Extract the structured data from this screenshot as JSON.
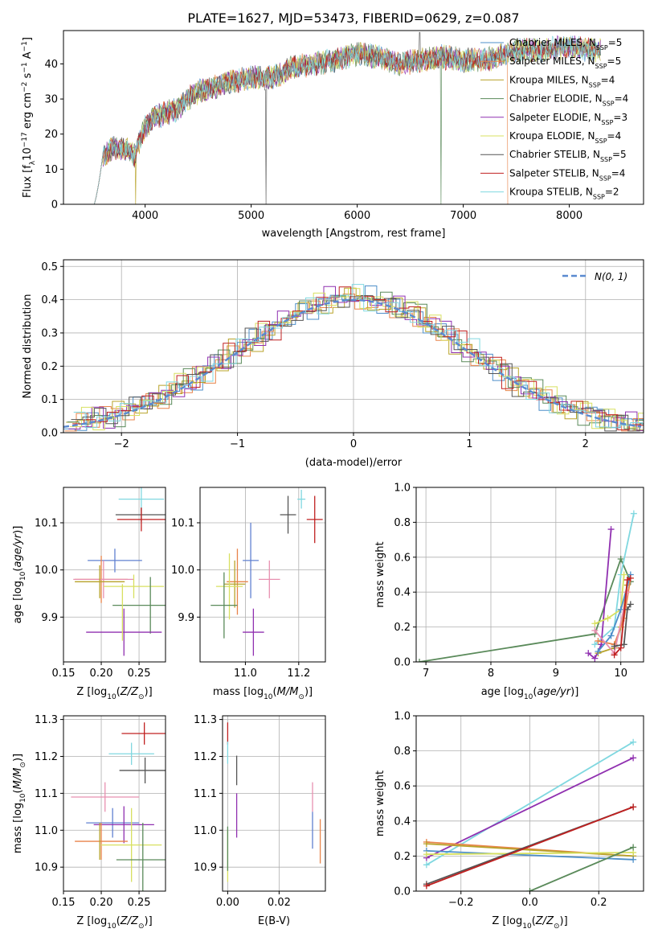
{
  "figure": {
    "title": "PLATE=1627, MJD=53473, FIBERID=0629, z=0.087",
    "colors": {
      "Chabrier MILES": "#4e8fc9",
      "Salpeter MILES": "#e8844a",
      "Kroupa MILES": "#b8a32a",
      "Chabrier ELODIE": "#5a8a5a",
      "Salpeter ELODIE": "#9030b0",
      "Kroupa ELODIE": "#d8e060",
      "Chabrier STELIB": "#555555",
      "Salpeter STELIB": "#c02020",
      "Kroupa STELIB": "#80d8e0",
      "extra_pink": "#e890b0",
      "extra_blue": "#6080d0",
      "gauss": "#5a8ad0"
    }
  },
  "chart_data": [
    {
      "id": "spectrum",
      "type": "line",
      "title": "PLATE=1627, MJD=53473, FIBERID=0629, z=0.087",
      "xlabel": "wavelength [Angstrom, rest frame]",
      "ylabel": "Flux [fλ10⁻¹⁷ erg cm⁻² s⁻¹ A⁻¹]",
      "xlim": [
        3230,
        8700
      ],
      "ylim": [
        0,
        49.5
      ],
      "xticks": [
        4000,
        5000,
        6000,
        7000,
        8000
      ],
      "yticks": [
        0,
        10,
        20,
        30,
        40
      ],
      "legend_position": "upper-right",
      "legend": [
        {
          "name": "Chabrier MILES, N",
          "sub": "SSP",
          "suffix": "=5",
          "color": "Chabrier MILES"
        },
        {
          "name": "Salpeter MILES, N",
          "sub": "SSP",
          "suffix": "=5",
          "color": "Salpeter MILES"
        },
        {
          "name": "Kroupa MILES, N",
          "sub": "SSP",
          "suffix": "=4",
          "color": "Kroupa MILES"
        },
        {
          "name": "Chabrier ELODIE, N",
          "sub": "SSP",
          "suffix": "=4",
          "color": "Chabrier ELODIE"
        },
        {
          "name": "Salpeter ELODIE, N",
          "sub": "SSP",
          "suffix": "=3",
          "color": "Salpeter ELODIE"
        },
        {
          "name": "Kroupa ELODIE, N",
          "sub": "SSP",
          "suffix": "=4",
          "color": "Kroupa ELODIE"
        },
        {
          "name": "Chabrier STELIB, N",
          "sub": "SSP",
          "suffix": "=5",
          "color": "Chabrier STELIB"
        },
        {
          "name": "Salpeter STELIB, N",
          "sub": "SSP",
          "suffix": "=4",
          "color": "Salpeter STELIB"
        },
        {
          "name": "Kroupa STELIB, N",
          "sub": "SSP",
          "suffix": "=2",
          "color": "Kroupa STELIB"
        }
      ],
      "continuum": {
        "x": [
          3520,
          3600,
          3700,
          3800,
          3900,
          3950,
          4000,
          4100,
          4200,
          4300,
          4400,
          4500,
          4600,
          4800,
          5000,
          5200,
          5400,
          5600,
          5800,
          6000,
          6200,
          6400,
          6600,
          6800,
          7000,
          7200,
          7400,
          7600,
          7800,
          8000,
          8200,
          8300
        ],
        "y": [
          8,
          14,
          16,
          16,
          14,
          18,
          22,
          25,
          26,
          27,
          30,
          32,
          33,
          35,
          36,
          36,
          39,
          40,
          41,
          43,
          42,
          40,
          41,
          42,
          41,
          41,
          43,
          44,
          44,
          45,
          44,
          44
        ]
      },
      "drops": [
        {
          "series": "Chabrier MILES",
          "x": 3520
        },
        {
          "series": "Kroupa MILES",
          "x": 3910
        },
        {
          "series": "Chabrier STELIB",
          "x": 5140
        },
        {
          "series": "Chabrier ELODIE",
          "x": 6790
        },
        {
          "series": "Salpeter MILES",
          "x": 7420
        }
      ]
    },
    {
      "id": "residual-histogram",
      "type": "step-histogram",
      "xlabel": "(data-model)/error",
      "ylabel": "Normed distribution",
      "xlim": [
        -2.5,
        2.5
      ],
      "ylim": [
        0,
        0.52
      ],
      "xticks": [
        -2,
        -1,
        0,
        1,
        2
      ],
      "yticks": [
        0.0,
        0.1,
        0.2,
        0.3,
        0.4,
        0.5
      ],
      "legend_position": "upper-right",
      "gauss_label": "N(0, 1)",
      "bin_width": 0.1,
      "series": [
        {
          "color": "Chabrier MILES",
          "offsets": [
            0.01,
            -0.02,
            0.02,
            0.01,
            -0.01,
            0.02,
            0.03,
            -0.02,
            0.01,
            0.0
          ]
        },
        {
          "color": "Salpeter MILES",
          "offsets": [
            -0.01,
            0.02,
            -0.02,
            0.03,
            0.01,
            -0.01,
            0.0,
            0.02,
            -0.02,
            0.01
          ]
        },
        {
          "color": "Kroupa MILES",
          "offsets": [
            0.02,
            0.0,
            -0.01,
            -0.02,
            0.03,
            0.01,
            -0.02,
            0.0,
            0.02,
            -0.01
          ]
        },
        {
          "color": "Chabrier ELODIE",
          "offsets": [
            0.03,
            -0.01,
            0.01,
            0.02,
            -0.02,
            0.0,
            0.01,
            0.03,
            -0.01,
            0.02
          ]
        },
        {
          "color": "Salpeter ELODIE",
          "offsets": [
            -0.02,
            0.01,
            0.03,
            -0.01,
            0.0,
            0.02,
            -0.01,
            0.01,
            0.03,
            -0.02
          ]
        },
        {
          "color": "Kroupa ELODIE",
          "offsets": [
            0.0,
            0.03,
            -0.02,
            0.01,
            0.02,
            -0.02,
            0.02,
            -0.01,
            0.0,
            0.03
          ]
        },
        {
          "color": "Chabrier STELIB",
          "offsets": [
            0.01,
            0.0,
            0.02,
            -0.02,
            0.01,
            0.03,
            -0.01,
            0.02,
            -0.02,
            0.0
          ]
        },
        {
          "color": "Salpeter STELIB",
          "offsets": [
            -0.01,
            0.02,
            0.0,
            0.03,
            -0.01,
            0.01,
            0.02,
            -0.02,
            0.01,
            0.02
          ]
        },
        {
          "color": "Kroupa STELIB",
          "offsets": [
            0.02,
            -0.02,
            0.01,
            0.0,
            0.03,
            -0.01,
            0.0,
            0.01,
            0.02,
            -0.01
          ]
        }
      ]
    },
    {
      "id": "age-vs-Z",
      "type": "errorbar",
      "xlabel": "Z [log10(Z/Z⊙)]",
      "ylabel": "age  [log10(age/yr)]",
      "xlim": [
        0.15,
        0.285
      ],
      "ylim": [
        9.805,
        10.175
      ],
      "xticks": [
        0.15,
        0.2,
        0.25
      ],
      "yticks": [
        9.9,
        10.0,
        10.1
      ],
      "points": [
        {
          "color": "Kroupa STELIB",
          "x": 0.253,
          "y": 10.15,
          "xe": 0.03,
          "ye": 0.025
        },
        {
          "color": "Chabrier STELIB",
          "x": 0.253,
          "y": 10.117,
          "xe": 0.034,
          "ye": 0.015
        },
        {
          "color": "Salpeter STELIB",
          "x": 0.253,
          "y": 10.107,
          "xe": 0.032,
          "ye": 0.025
        },
        {
          "color": "extra_blue",
          "x": 0.218,
          "y": 10.02,
          "xe": 0.036,
          "ye": 0.025
        },
        {
          "color": "Salpeter MILES",
          "x": 0.2,
          "y": 9.98,
          "xe": 0.035,
          "ye": 0.05
        },
        {
          "color": "extra_pink",
          "x": 0.203,
          "y": 9.98,
          "xe": 0.04,
          "ye": 0.04
        },
        {
          "color": "Kroupa MILES",
          "x": 0.198,
          "y": 9.975,
          "xe": 0.033,
          "ye": 0.035
        },
        {
          "color": "Kroupa ELODIE",
          "x": 0.243,
          "y": 9.965,
          "xe": 0.04,
          "ye": 0.025
        },
        {
          "color": "Chabrier ELODIE",
          "x": 0.265,
          "y": 9.925,
          "xe": 0.05,
          "ye": 0.06
        },
        {
          "color": "Salpeter ELODIE",
          "x": 0.23,
          "y": 9.868,
          "xe": 0.05,
          "ye": 0.05
        },
        {
          "color": "Kroupa ELODIE",
          "x": 0.228,
          "y": 9.91,
          "xe": 0.0,
          "ye": 0.06
        }
      ]
    },
    {
      "id": "age-vs-mass",
      "type": "errorbar",
      "xlabel": "mass [log10(M/M⊙)]",
      "ylabel": "",
      "xlim": [
        10.83,
        11.3
      ],
      "ylim": [
        9.805,
        10.175
      ],
      "xticks": [
        11.0,
        11.2
      ],
      "yticks": [
        9.9,
        10.0,
        10.1
      ],
      "points": [
        {
          "color": "Kroupa STELIB",
          "x": 11.21,
          "y": 10.15,
          "xe": 0.015,
          "ye": 0.02
        },
        {
          "color": "Chabrier STELIB",
          "x": 11.16,
          "y": 10.117,
          "xe": 0.03,
          "ye": 0.04
        },
        {
          "color": "Salpeter STELIB",
          "x": 11.26,
          "y": 10.107,
          "xe": 0.03,
          "ye": 0.05
        },
        {
          "color": "extra_blue",
          "x": 11.02,
          "y": 10.02,
          "xe": 0.03,
          "ye": 0.08
        },
        {
          "color": "extra_pink",
          "x": 11.09,
          "y": 9.98,
          "xe": 0.04,
          "ye": 0.04
        },
        {
          "color": "Salpeter MILES",
          "x": 10.97,
          "y": 9.975,
          "xe": 0.04,
          "ye": 0.07
        },
        {
          "color": "Kroupa MILES",
          "x": 10.96,
          "y": 9.97,
          "xe": 0.04,
          "ye": 0.05
        },
        {
          "color": "Kroupa ELODIE",
          "x": 10.94,
          "y": 9.965,
          "xe": 0.05,
          "ye": 0.07
        },
        {
          "color": "Chabrier ELODIE",
          "x": 10.92,
          "y": 9.925,
          "xe": 0.05,
          "ye": 0.07
        },
        {
          "color": "Salpeter ELODIE",
          "x": 11.03,
          "y": 9.868,
          "xe": 0.04,
          "ye": 0.05
        }
      ]
    },
    {
      "id": "massweight-vs-age",
      "type": "line",
      "xlabel": "age  [log10(age/yr)]",
      "ylabel": "mass weight",
      "xlim": [
        6.85,
        10.35
      ],
      "ylim": [
        0,
        1.0
      ],
      "xticks": [
        7,
        8,
        9,
        10
      ],
      "yticks": [
        0.0,
        0.2,
        0.4,
        0.6,
        0.8,
        1.0
      ],
      "series": [
        {
          "color": "Chabrier ELODIE",
          "x": [
            6.9,
            9.6,
            10.0,
            10.15
          ],
          "y": [
            0.0,
            0.16,
            0.59,
            0.46
          ]
        },
        {
          "color": "Kroupa STELIB",
          "x": [
            9.6,
            9.9,
            10.0,
            10.2
          ],
          "y": [
            0.1,
            0.2,
            0.5,
            0.85
          ]
        },
        {
          "color": "Salpeter ELODIE",
          "x": [
            9.5,
            9.6,
            9.7,
            9.85
          ],
          "y": [
            0.05,
            0.02,
            0.1,
            0.76
          ]
        },
        {
          "color": "Kroupa ELODIE",
          "x": [
            9.6,
            9.8,
            10.0,
            10.05
          ],
          "y": [
            0.22,
            0.25,
            0.3,
            0.5
          ]
        },
        {
          "color": "Kroupa MILES",
          "x": [
            9.65,
            9.9,
            10.0,
            10.1
          ],
          "y": [
            0.05,
            0.08,
            0.2,
            0.44
          ]
        },
        {
          "color": "Salpeter MILES",
          "x": [
            9.65,
            9.9,
            10.05,
            10.15
          ],
          "y": [
            0.12,
            0.1,
            0.25,
            0.48
          ]
        },
        {
          "color": "Chabrier MILES",
          "x": [
            9.65,
            9.85,
            10.0,
            10.15
          ],
          "y": [
            0.06,
            0.15,
            0.3,
            0.5
          ]
        },
        {
          "color": "extra_pink",
          "x": [
            9.6,
            9.9,
            10.1
          ],
          "y": [
            0.18,
            0.05,
            0.4
          ]
        },
        {
          "color": "Chabrier STELIB",
          "x": [
            9.9,
            10.05,
            10.1,
            10.15
          ],
          "y": [
            0.09,
            0.1,
            0.3,
            0.33
          ]
        },
        {
          "color": "Salpeter STELIB",
          "x": [
            9.9,
            10.0,
            10.1,
            10.15
          ],
          "y": [
            0.04,
            0.08,
            0.47,
            0.48
          ]
        }
      ]
    },
    {
      "id": "mass-vs-Z",
      "type": "errorbar",
      "xlabel": "Z [log10(Z/Z⊙)]",
      "ylabel": "mass [log10(M/M⊙)]",
      "xlim": [
        0.15,
        0.285
      ],
      "ylim": [
        10.835,
        11.31
      ],
      "xticks": [
        0.15,
        0.2,
        0.25
      ],
      "yticks": [
        10.9,
        11.0,
        11.1,
        11.2,
        11.3
      ],
      "points": [
        {
          "color": "Salpeter STELIB",
          "x": 0.257,
          "y": 11.262,
          "xe": 0.03,
          "ye": 0.03
        },
        {
          "color": "Kroupa STELIB",
          "x": 0.24,
          "y": 11.207,
          "xe": 0.03,
          "ye": 0.03
        },
        {
          "color": "Chabrier STELIB",
          "x": 0.258,
          "y": 11.162,
          "xe": 0.034,
          "ye": 0.035
        },
        {
          "color": "extra_pink",
          "x": 0.205,
          "y": 11.09,
          "xe": 0.045,
          "ye": 0.04
        },
        {
          "color": "extra_blue",
          "x": 0.215,
          "y": 11.02,
          "xe": 0.035,
          "ye": 0.04
        },
        {
          "color": "Salpeter ELODIE",
          "x": 0.23,
          "y": 11.015,
          "xe": 0.04,
          "ye": 0.05
        },
        {
          "color": "Salpeter MILES",
          "x": 0.2,
          "y": 10.97,
          "xe": 0.035,
          "ye": 0.05
        },
        {
          "color": "Kroupa ELODIE",
          "x": 0.24,
          "y": 10.96,
          "xe": 0.04,
          "ye": 0.1
        },
        {
          "color": "Chabrier ELODIE",
          "x": 0.255,
          "y": 10.92,
          "xe": 0.035,
          "ye": 0.1
        },
        {
          "color": "Kroupa MILES",
          "x": 0.198,
          "y": 10.97,
          "xe": 0.0,
          "ye": 0.05
        }
      ]
    },
    {
      "id": "mass-vs-ebv",
      "type": "errorbar",
      "xlabel": "E(B-V)",
      "ylabel": "",
      "xlim": [
        -0.002,
        0.038
      ],
      "ylim": [
        10.835,
        11.31
      ],
      "xticks": [
        0.0,
        0.02
      ],
      "yticks": [
        10.9,
        11.0,
        11.1,
        11.2,
        11.3
      ],
      "points": [
        {
          "color": "Salpeter STELIB",
          "x": 0.0,
          "y": 11.262,
          "xe": 0.0,
          "ye": 0.03
        },
        {
          "color": "Kroupa STELIB",
          "x": 0.0,
          "y": 11.21,
          "xe": 0.0,
          "ye": 0.03
        },
        {
          "color": "Chabrier STELIB",
          "x": 0.0035,
          "y": 11.162,
          "xe": 0.0,
          "ye": 0.04
        },
        {
          "color": "Salpeter ELODIE",
          "x": 0.0035,
          "y": 11.04,
          "xe": 0.0,
          "ye": 0.06
        },
        {
          "color": "extra_pink",
          "x": 0.033,
          "y": 11.09,
          "xe": 0.0,
          "ye": 0.04
        },
        {
          "color": "extra_blue",
          "x": 0.033,
          "y": 11.0,
          "xe": 0.0,
          "ye": 0.05
        },
        {
          "color": "Salpeter MILES",
          "x": 0.036,
          "y": 10.97,
          "xe": 0.0,
          "ye": 0.06
        },
        {
          "color": "Kroupa ELODIE",
          "x": 0.0,
          "y": 10.93,
          "xe": 0.0,
          "ye": 0.07
        },
        {
          "color": "Chabrier ELODIE",
          "x": 0.0,
          "y": 10.95,
          "xe": 0.0,
          "ye": 0.06
        }
      ]
    },
    {
      "id": "massweight-vs-Z",
      "type": "line",
      "xlabel": "Z [log10(Z/Z⊙)]",
      "ylabel": "mass weight",
      "xlim": [
        -0.33,
        0.33
      ],
      "ylim": [
        0,
        1.0
      ],
      "xticks": [
        -0.2,
        0.0,
        0.2
      ],
      "yticks": [
        0.0,
        0.2,
        0.4,
        0.6,
        0.8,
        1.0
      ],
      "series": [
        {
          "color": "Kroupa STELIB",
          "x": [
            -0.3,
            0.3
          ],
          "y": [
            0.15,
            0.85
          ]
        },
        {
          "color": "Salpeter ELODIE",
          "x": [
            -0.3,
            0.3
          ],
          "y": [
            0.19,
            0.76
          ]
        },
        {
          "color": "Salpeter MILES",
          "x": [
            -0.3,
            0.3
          ],
          "y": [
            0.28,
            0.2
          ]
        },
        {
          "color": "Kroupa MILES",
          "x": [
            -0.3,
            0.3
          ],
          "y": [
            0.27,
            0.2
          ]
        },
        {
          "color": "Chabrier MILES",
          "x": [
            -0.3,
            0.3
          ],
          "y": [
            0.23,
            0.18
          ]
        },
        {
          "color": "Kroupa ELODIE",
          "x": [
            -0.3,
            0.3
          ],
          "y": [
            0.21,
            0.22
          ]
        },
        {
          "color": "Chabrier ELODIE",
          "x": [
            0.0,
            0.3
          ],
          "y": [
            0.0,
            0.25
          ]
        },
        {
          "color": "Chabrier STELIB",
          "x": [
            -0.3,
            0.3
          ],
          "y": [
            0.04,
            0.48
          ]
        },
        {
          "color": "Salpeter STELIB",
          "x": [
            -0.3,
            0.3
          ],
          "y": [
            0.03,
            0.48
          ]
        }
      ]
    }
  ]
}
